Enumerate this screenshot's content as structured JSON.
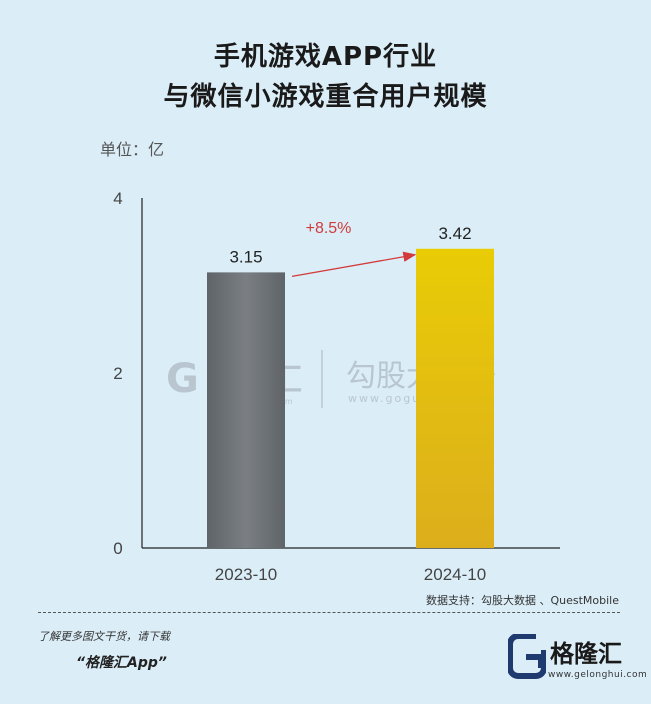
{
  "title_line1": "手机游戏APP行业",
  "title_line2": "与微信小游戏重合用户规模",
  "unit_label": "单位：亿",
  "growth_label": "+8.5%",
  "watermark": {
    "left_name": "格隆汇",
    "left_url": "www.gelonghui.com",
    "right_name": "勾股大数据",
    "right_url": "www.gogudata.com"
  },
  "source_text": "数据支持：勾股大数据 、QuestMobile",
  "promo_line1": "了解更多图文干货，请下载",
  "promo_line2": "“格隆汇App”",
  "brand": {
    "name": "格隆汇",
    "url": "www.gelonghui.com"
  },
  "colors": {
    "background": "#dbeef8",
    "bar_2023": "#6b7075",
    "bar_2024": "#e4bd0a",
    "growth_arrow": "#d33a3a"
  },
  "chart_data": {
    "type": "bar",
    "categories": [
      "2023-10",
      "2024-10"
    ],
    "values": [
      3.15,
      3.42
    ],
    "value_labels": [
      "3.15",
      "3.42"
    ],
    "ylim": [
      0,
      4
    ],
    "yticks": [
      0,
      2,
      4
    ],
    "ytick_labels": [
      "0",
      "2",
      "4"
    ],
    "ylabel": "单位：亿",
    "grid": false,
    "legend": "none"
  }
}
